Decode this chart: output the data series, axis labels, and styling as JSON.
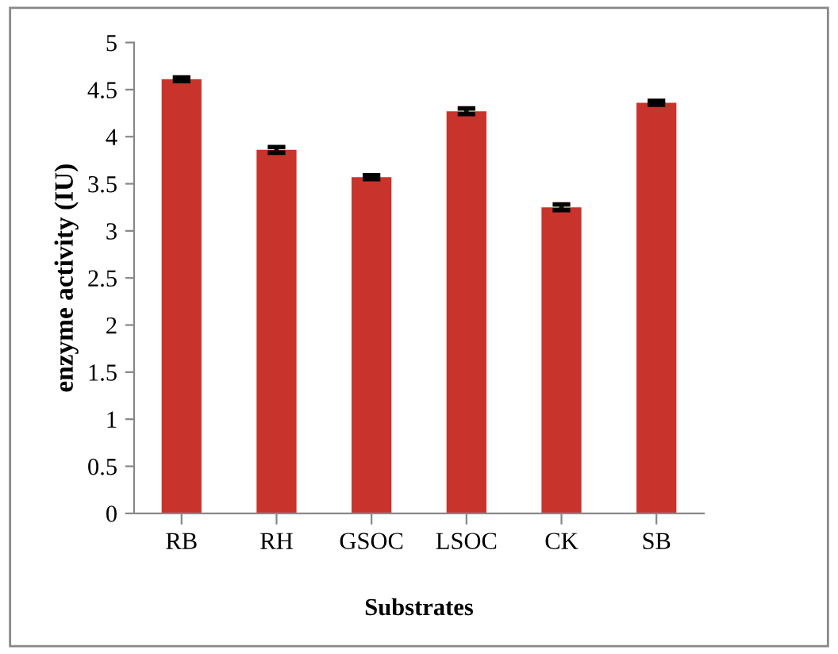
{
  "chart_data": {
    "type": "bar",
    "xlabel": "Substrates",
    "ylabel": "enzyme activity (IU)",
    "categories": [
      "RB",
      "RH",
      "GSOC",
      "LSOC",
      "CK",
      "SB"
    ],
    "values": [
      4.61,
      3.86,
      3.57,
      4.27,
      3.25,
      4.36
    ],
    "errors": [
      0.02,
      0.03,
      0.02,
      0.03,
      0.03,
      0.02
    ],
    "color": "#c8332c",
    "ylim": [
      0,
      5
    ],
    "yticks": [
      0,
      0.5,
      1,
      1.5,
      2,
      2.5,
      3,
      3.5,
      4,
      4.5,
      5
    ],
    "grid": false,
    "legend": false
  }
}
